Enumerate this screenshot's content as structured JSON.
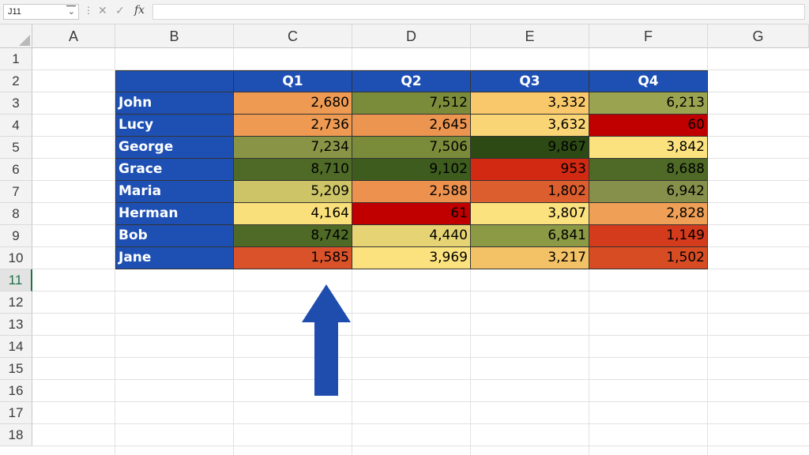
{
  "formula_bar": {
    "name_box": "J11",
    "cancel_icon": "x-icon",
    "enter_icon": "check-icon",
    "fx_label": "fx",
    "formula": ""
  },
  "columns": [
    "A",
    "B",
    "C",
    "D",
    "E",
    "F",
    "G"
  ],
  "rows": [
    "1",
    "2",
    "3",
    "4",
    "5",
    "6",
    "7",
    "8",
    "9",
    "10",
    "11",
    "12",
    "13",
    "14",
    "15",
    "16",
    "17",
    "18"
  ],
  "active_row": "11",
  "table": {
    "header": [
      "",
      "Q1",
      "Q2",
      "Q3",
      "Q4"
    ],
    "header_color": "#1E50B4",
    "rows": [
      {
        "name": "John",
        "values": [
          "2,680",
          "7,512",
          "3,332",
          "6,213"
        ],
        "colors": [
          "#EE9A52",
          "#7A8C3A",
          "#F8C86A",
          "#9AA450"
        ]
      },
      {
        "name": "Lucy",
        "values": [
          "2,736",
          "2,645",
          "3,632",
          "60"
        ],
        "colors": [
          "#EE9A52",
          "#EC9550",
          "#FAD576",
          "#C00000"
        ]
      },
      {
        "name": "George",
        "values": [
          "7,234",
          "7,506",
          "9,867",
          "3,842"
        ],
        "colors": [
          "#8A9446",
          "#7A8C3A",
          "#2D4A14",
          "#FCE27E"
        ]
      },
      {
        "name": "Grace",
        "values": [
          "8,710",
          "9,102",
          "953",
          "8,688"
        ],
        "colors": [
          "#4E6A26",
          "#3E5C1E",
          "#D22A12",
          "#4E6A26"
        ]
      },
      {
        "name": "Maria",
        "values": [
          "5,209",
          "2,588",
          "1,802",
          "6,942"
        ],
        "colors": [
          "#CCC466",
          "#EC914E",
          "#DC5E2E",
          "#86904A"
        ]
      },
      {
        "name": "Herman",
        "values": [
          "4,164",
          "61",
          "3,807",
          "2,828"
        ],
        "colors": [
          "#FAE07A",
          "#C00000",
          "#FCE27E",
          "#EFA056"
        ]
      },
      {
        "name": "Bob",
        "values": [
          "8,742",
          "4,440",
          "6,841",
          "1,149"
        ],
        "colors": [
          "#4E6A26",
          "#E6D474",
          "#8C9A46",
          "#D43A1C"
        ]
      },
      {
        "name": "Jane",
        "values": [
          "1,585",
          "3,969",
          "3,217",
          "1,502"
        ],
        "colors": [
          "#DA522A",
          "#FCE27E",
          "#F4C266",
          "#D84C24"
        ]
      }
    ]
  },
  "annotation": {
    "icon": "up-arrow-icon",
    "color": "#1E4DAE"
  }
}
